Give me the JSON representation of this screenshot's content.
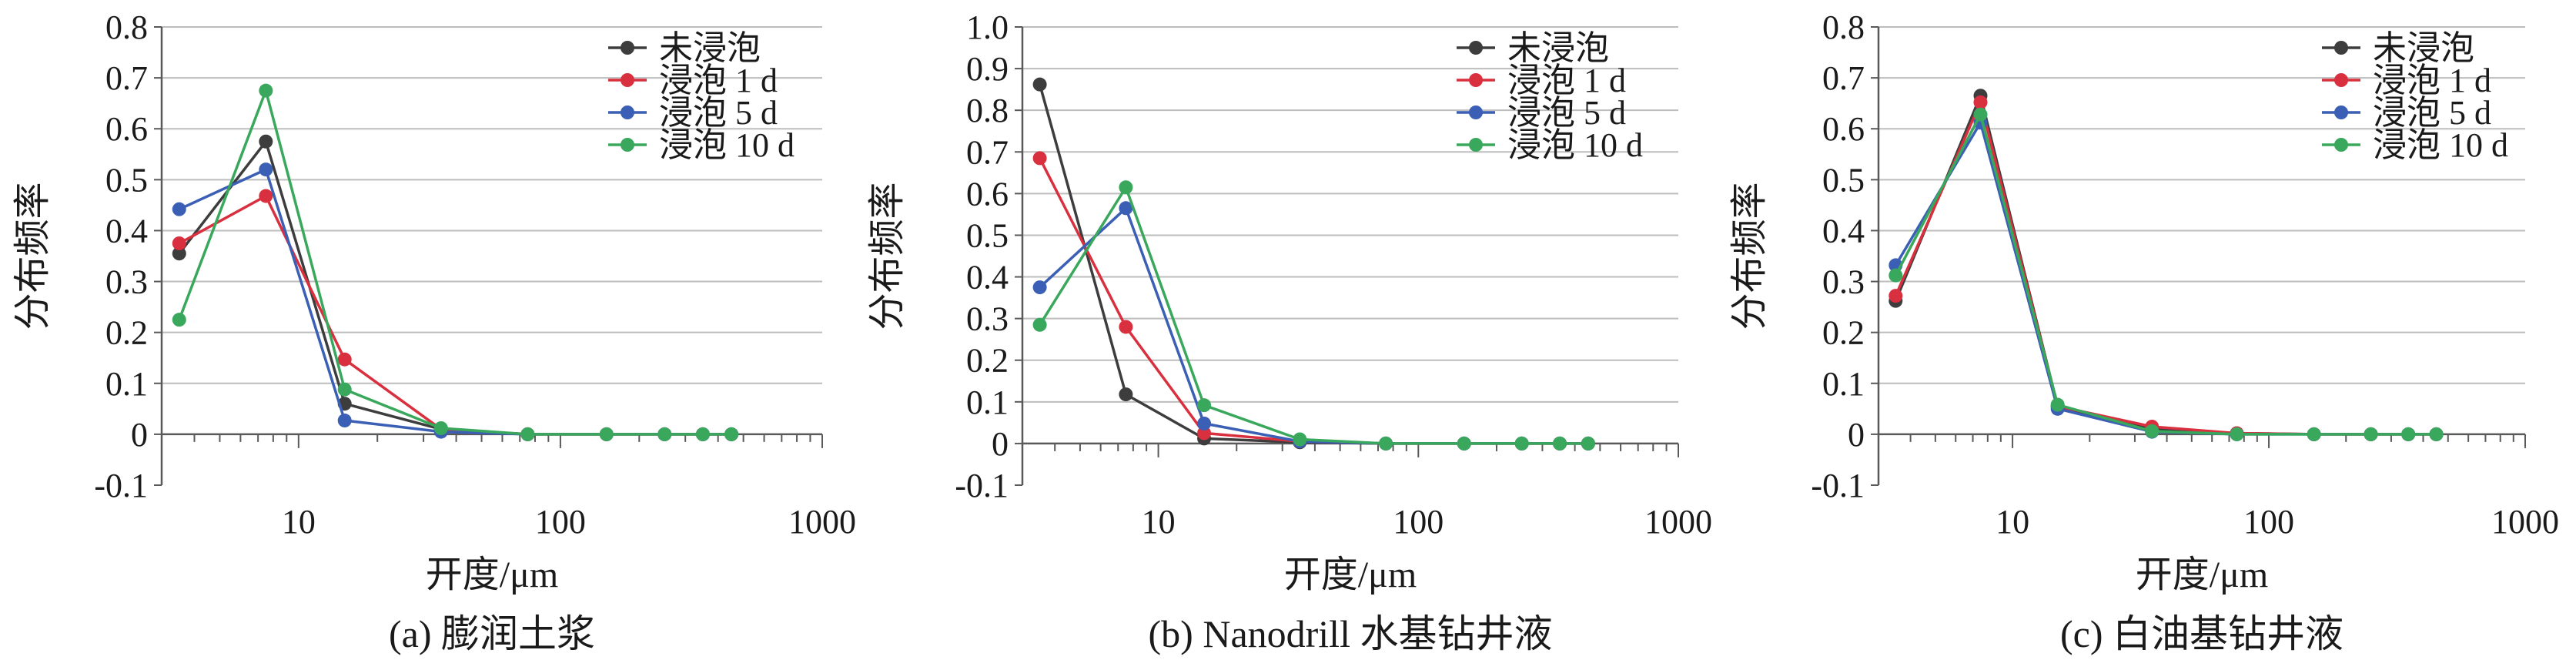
{
  "colors": {
    "series": [
      "#3d3d3d",
      "#d9303f",
      "#3a5fb5",
      "#3aa85c"
    ],
    "grid": "#bdbdbd",
    "axis": "#595959"
  },
  "legend_labels": [
    "未浸泡",
    "浸泡 1 d",
    "浸泡 5 d",
    "浸泡 10 d"
  ],
  "chart_data": [
    {
      "type": "line",
      "caption": "(a) 膨润土浆",
      "xlabel": "开度/μm",
      "ylabel": "分布频率",
      "xscale": "log",
      "xlim": [
        3,
        1000
      ],
      "ylim": [
        -0.1,
        0.8
      ],
      "xticks": [
        "10",
        "100",
        "1000"
      ],
      "yticks": [
        "-0.1",
        "0",
        "0.1",
        "0.2",
        "0.3",
        "0.4",
        "0.5",
        "0.6",
        "0.7",
        "0.8"
      ],
      "grid": true,
      "legend": "top-right",
      "x": [
        3.5,
        7.5,
        15,
        35,
        75,
        150,
        250,
        350,
        450
      ],
      "series": [
        {
          "name": "未浸泡",
          "values": [
            0.355,
            0.575,
            0.06,
            0.01,
            0.0,
            0.0,
            0.0,
            0.0,
            0.0
          ]
        },
        {
          "name": "浸泡 1 d",
          "values": [
            0.375,
            0.468,
            0.147,
            0.01,
            0.0,
            0.0,
            0.0,
            0.0,
            0.0
          ]
        },
        {
          "name": "浸泡 5 d",
          "values": [
            0.442,
            0.52,
            0.027,
            0.005,
            0.0,
            0.0,
            0.0,
            0.0,
            0.0
          ]
        },
        {
          "name": "浸泡 10 d",
          "values": [
            0.225,
            0.675,
            0.088,
            0.012,
            0.0,
            0.0,
            0.0,
            0.0,
            0.0
          ]
        }
      ]
    },
    {
      "type": "line",
      "caption": "(b) Nanodrill 水基钻井液",
      "xlabel": "开度/μm",
      "ylabel": "分布频率",
      "xscale": "log",
      "xlim": [
        3,
        1000
      ],
      "ylim": [
        -0.1,
        1.0
      ],
      "xticks": [
        "10",
        "100",
        "1000"
      ],
      "yticks": [
        "-0.1",
        "0",
        "0.1",
        "0.2",
        "0.3",
        "0.4",
        "0.5",
        "0.6",
        "0.7",
        "0.8",
        "0.9",
        "1.0"
      ],
      "grid": true,
      "legend": "top-right",
      "x": [
        3.5,
        7.5,
        15,
        35,
        75,
        150,
        250,
        350,
        450
      ],
      "series": [
        {
          "name": "未浸泡",
          "values": [
            0.862,
            0.118,
            0.012,
            0.003,
            0.0,
            0.0,
            0.0,
            0.0,
            0.0
          ]
        },
        {
          "name": "浸泡 1 d",
          "values": [
            0.685,
            0.28,
            0.025,
            0.005,
            0.0,
            0.0,
            0.0,
            0.0,
            0.0
          ]
        },
        {
          "name": "浸泡 5 d",
          "values": [
            0.375,
            0.565,
            0.048,
            0.005,
            0.0,
            0.0,
            0.0,
            0.0,
            0.0
          ]
        },
        {
          "name": "浸泡 10 d",
          "values": [
            0.285,
            0.615,
            0.092,
            0.01,
            0.0,
            0.0,
            0.0,
            0.0,
            0.0
          ]
        }
      ]
    },
    {
      "type": "line",
      "caption": "(c) 白油基钻井液",
      "xlabel": "开度/μm",
      "ylabel": "分布频率",
      "xscale": "log",
      "xlim": [
        3,
        1000
      ],
      "ylim": [
        -0.1,
        0.8
      ],
      "xticks": [
        "10",
        "100",
        "1000"
      ],
      "yticks": [
        "-0.1",
        "0",
        "0.1",
        "0.2",
        "0.3",
        "0.4",
        "0.5",
        "0.6",
        "0.7",
        "0.8"
      ],
      "grid": true,
      "legend": "top-right",
      "x": [
        3.5,
        7.5,
        15,
        35,
        75,
        150,
        250,
        350,
        450
      ],
      "series": [
        {
          "name": "未浸泡",
          "values": [
            0.262,
            0.665,
            0.055,
            0.01,
            0.002,
            0.0,
            0.0,
            0.0,
            0.0
          ]
        },
        {
          "name": "浸泡 1 d",
          "values": [
            0.272,
            0.652,
            0.055,
            0.015,
            0.002,
            0.0,
            0.0,
            0.0,
            0.0
          ]
        },
        {
          "name": "浸泡 5 d",
          "values": [
            0.332,
            0.612,
            0.05,
            0.005,
            0.0,
            0.0,
            0.0,
            0.0,
            0.0
          ]
        },
        {
          "name": "浸泡 10 d",
          "values": [
            0.312,
            0.628,
            0.058,
            0.006,
            0.0,
            0.0,
            0.0,
            0.0,
            0.0
          ]
        }
      ]
    }
  ]
}
